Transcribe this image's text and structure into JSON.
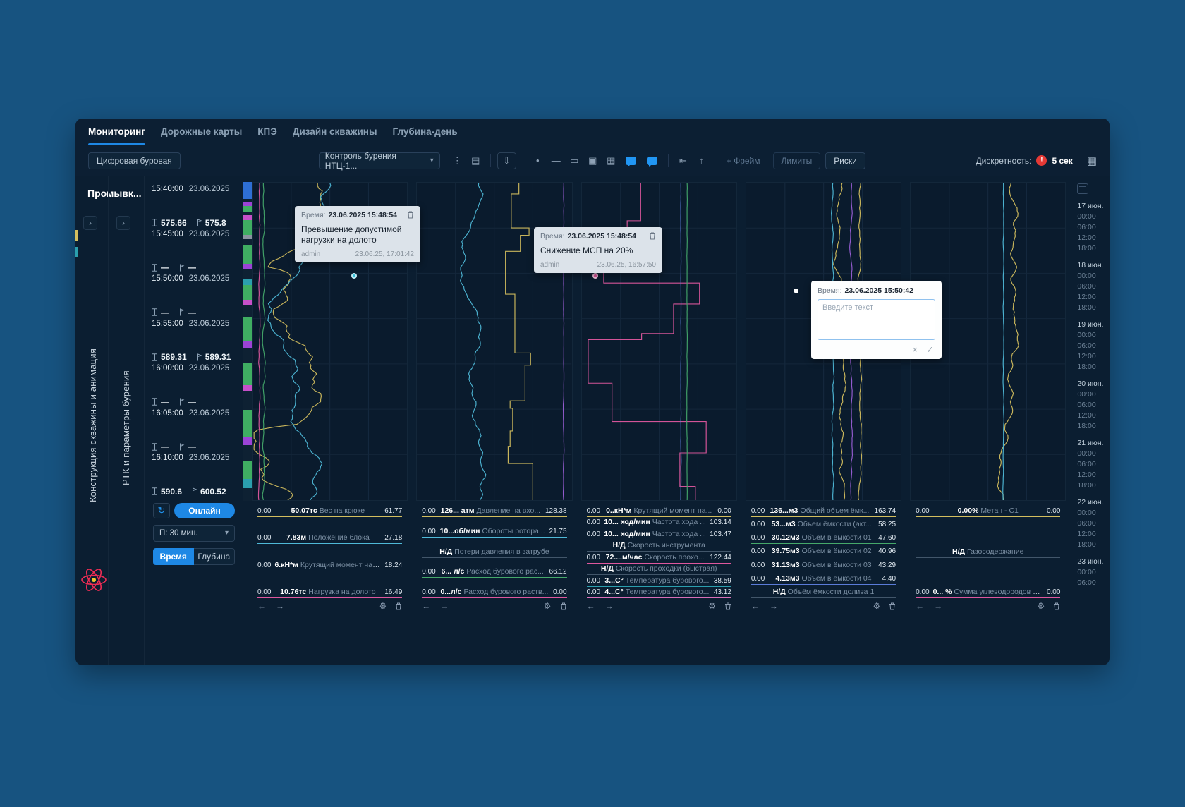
{
  "colors": {
    "accent": "#1e88e5",
    "alert": "#e53935",
    "bg_outer": "#175380",
    "bg_app": "#0b1e31"
  },
  "nav": {
    "tabs": [
      {
        "label": "Мониторинг",
        "active": true
      },
      {
        "label": "Дорожные карты",
        "active": false
      },
      {
        "label": "КПЭ",
        "active": false
      },
      {
        "label": "Дизайн скважины",
        "active": false
      },
      {
        "label": "Глубина-день",
        "active": false
      }
    ]
  },
  "toolbar": {
    "rig_button": "Цифровая буровая",
    "view_select": "Контроль бурения НТЦ-1...",
    "icon_groups": [
      {
        "icons": [
          {
            "name": "kebab-menu-icon",
            "glyph": "⋮"
          },
          {
            "name": "save-icon",
            "glyph": "▤"
          }
        ]
      },
      {
        "icons": [
          {
            "name": "download-icon",
            "glyph": "⇩",
            "boxed": true
          }
        ]
      },
      {
        "icons": [
          {
            "name": "point-tool-icon",
            "glyph": "•"
          },
          {
            "name": "line-tool-icon",
            "glyph": "―"
          },
          {
            "name": "rect-tool-icon",
            "glyph": "▭"
          },
          {
            "name": "frame-tool-icon",
            "glyph": "▣"
          },
          {
            "name": "table-tool-icon",
            "glyph": "▦"
          },
          {
            "name": "comment-tool-icon",
            "glyph": "chat"
          },
          {
            "name": "comment-add-icon",
            "glyph": "chat"
          }
        ]
      },
      {
        "icons": [
          {
            "name": "align-left-icon",
            "glyph": "⇤"
          },
          {
            "name": "arrow-up-icon",
            "glyph": "↑"
          }
        ]
      }
    ],
    "frame_button": "+ Фрейм",
    "limits_button": "Лимиты",
    "risks_button": "Риски",
    "discreteness_label": "Дискретность:",
    "discreteness_alert": "!",
    "discreteness_value": "5 сек"
  },
  "left_panel": {
    "header": "Промывк...",
    "rail_construction": "Конструкция скважины и анимация",
    "rail_rtk": "РТК и параметры бурения"
  },
  "time_panel": {
    "rows": [
      {
        "time": "15:40:00",
        "date": "23.06.2025",
        "bit": "575.66",
        "hole": "575.8"
      },
      {
        "time": "15:45:00",
        "date": "23.06.2025",
        "bit": "—",
        "hole": "—"
      },
      {
        "time": "15:50:00",
        "date": "23.06.2025",
        "bit": "—",
        "hole": "—"
      },
      {
        "time": "15:55:00",
        "date": "23.06.2025",
        "bit": "589.31",
        "hole": "589.31"
      },
      {
        "time": "16:00:00",
        "date": "23.06.2025",
        "bit": "—",
        "hole": "—"
      },
      {
        "time": "16:05:00",
        "date": "23.06.2025",
        "bit": "—",
        "hole": "—"
      },
      {
        "time": "16:10:00",
        "date": "23.06.2025",
        "bit": "590.6",
        "hole": "600.52"
      }
    ],
    "online_button": "Онлайн",
    "period_select": "П: 30 мин.",
    "mode_time": "Время",
    "mode_depth": "Глубина"
  },
  "depth_strip": [
    [
      "#2e6fd4",
      5.5
    ],
    [
      "#0e2133",
      1
    ],
    [
      "#9c43d6",
      1.2
    ],
    [
      "#3fae62",
      2
    ],
    [
      "#0e2133",
      1
    ],
    [
      "#c750c9",
      1.5
    ],
    [
      "#3fae62",
      5
    ],
    [
      "#8a93a0",
      1.2
    ],
    [
      "#0e2133",
      2
    ],
    [
      "#3fae62",
      6
    ],
    [
      "#9c43d6",
      1.8
    ],
    [
      "#0e2133",
      3
    ],
    [
      "#2b9fae",
      2
    ],
    [
      "#3fae62",
      5
    ],
    [
      "#c750c9",
      1.4
    ],
    [
      "#0e2133",
      4
    ],
    [
      "#3fae62",
      8
    ],
    [
      "#9c43d6",
      2
    ],
    [
      "#0e2133",
      5
    ],
    [
      "#3fae62",
      7
    ],
    [
      "#c750c9",
      2
    ],
    [
      "#0e2133",
      6
    ],
    [
      "#3fae62",
      9
    ],
    [
      "#9c43d6",
      2.5
    ],
    [
      "#0e2133",
      5
    ],
    [
      "#3fae62",
      6
    ],
    [
      "#2b9fae",
      3
    ],
    [
      "#0e2133",
      4
    ]
  ],
  "tracks": [
    {
      "series": [
        {
          "color": "#d3be5e",
          "mode": "walk",
          "cx": 0.42,
          "amp": 0.16,
          "pull": 0.03,
          "spiky": true,
          "seed": 11
        },
        {
          "color": "#4fb9d8",
          "mode": "walk",
          "cx": 0.5,
          "amp": 0.12,
          "pull": 0.04,
          "seed": 22
        },
        {
          "color": "#45a86a",
          "mode": "walk",
          "cx": 0.07,
          "amp": 0.02,
          "pull": 0.25,
          "seed": 33
        },
        {
          "color": "#de579e",
          "mode": "walk",
          "cx": 0.045,
          "amp": 0.015,
          "pull": 0.3,
          "seed": 44
        }
      ],
      "legends": [
        {
          "min": "0.00",
          "value": "50.07тс",
          "label": "Вес на крюке",
          "max": "61.77",
          "color": "#d3be5e"
        },
        {
          "min": "0.00",
          "value": "7.83м",
          "label": "Положение блока",
          "max": "27.18",
          "color": "#4fb9d8"
        },
        {
          "min": "0.00",
          "value": "6.кН*м",
          "label": "Крутящий момент на р...",
          "max": "18.24",
          "color": "#45a86a"
        },
        {
          "min": "0.00",
          "value": "10.76тс",
          "label": "Нагрузка на долото",
          "max": "16.49",
          "color": "#de579e"
        }
      ]
    },
    {
      "series": [
        {
          "color": "#4fb9d8",
          "mode": "walk",
          "cx": 0.4,
          "amp": 0.07,
          "pull": 0.06,
          "seed": 55
        },
        {
          "color": "#d3be5e",
          "mode": "step",
          "cx": 0.66,
          "amp": 0.18,
          "seed": 66
        },
        {
          "color": "#9a5fd6",
          "mode": "walk",
          "cx": 0.95,
          "amp": 0.01,
          "pull": 0.4,
          "seed": 77
        }
      ],
      "legends": [
        {
          "min": "0.00",
          "value": "126... атм",
          "label": "Давление на вхо...",
          "max": "128.38",
          "color": "#d3be5e"
        },
        {
          "min": "0.00",
          "value": "10...об/мин",
          "label": "Обороты ротора...",
          "max": "21.75",
          "color": "#4fb9d8"
        },
        {
          "nd": true,
          "value": "Н/Д",
          "label": "Потери давления в затрубе",
          "color": "#42566a"
        },
        {
          "min": "0.00",
          "value": "6... л/с",
          "label": "Расход бурового рас...",
          "max": "66.12",
          "color": "#45a86a"
        },
        {
          "min": "0.00",
          "value": "0...л/с",
          "label": "Расход бурового раств...",
          "max": "0.00",
          "color": "#de579e"
        }
      ]
    },
    {
      "series": [
        {
          "color": "#de579e",
          "mode": "step",
          "cx": 0.38,
          "amp": 0.85,
          "seed": 88
        },
        {
          "color": "#5a7bd8",
          "mode": "walk",
          "cx": 0.64,
          "amp": 0.008,
          "pull": 0.5,
          "seed": 99
        },
        {
          "color": "#45a86a",
          "mode": "walk",
          "cx": 0.68,
          "amp": 0.008,
          "pull": 0.5,
          "seed": 111
        }
      ],
      "legends": [
        {
          "min": "0.00",
          "value": "0..кН*м",
          "label": "Крутящий момент на...",
          "max": "0.00",
          "color": "#d3be5e"
        },
        {
          "min": "0.00",
          "value": "10... ход/мин",
          "label": "Частота хода ...",
          "max": "103.14",
          "color": "#4fb9d8"
        },
        {
          "min": "0.00",
          "value": "10... ход/мин",
          "label": "Частота хода ...",
          "max": "103.47",
          "color": "#5a7bd8"
        },
        {
          "nd": true,
          "value": "Н/Д",
          "label": "Скорость инструмента",
          "color": "#42566a"
        },
        {
          "min": "0.00",
          "value": "72....м/час",
          "label": "Скорость прохо...",
          "max": "122.44",
          "color": "#de579e"
        },
        {
          "nd": true,
          "value": "Н/Д",
          "label": "Скорость проходки (быстрая)",
          "color": "#42566a"
        },
        {
          "min": "0.00",
          "value": "3...С°",
          "label": "Температура бурового...",
          "max": "38.59",
          "color": "#2b9fae"
        },
        {
          "min": "0.00",
          "value": "4...С°",
          "label": "Температура бурового...",
          "max": "43.12",
          "color": "#d86fb8"
        }
      ]
    },
    {
      "series": [
        {
          "color": "#4fb9d8",
          "mode": "walk",
          "cx": 0.56,
          "amp": 0.02,
          "pull": 0.3,
          "seed": 121
        },
        {
          "color": "#d3be5e",
          "mode": "walk",
          "cx": 0.62,
          "amp": 0.05,
          "pull": 0.12,
          "seed": 131
        },
        {
          "color": "#9a5fd6",
          "mode": "walk",
          "cx": 0.68,
          "amp": 0.02,
          "pull": 0.3,
          "seed": 141
        },
        {
          "color": "#d3be5e",
          "mode": "walk",
          "cx": 0.74,
          "amp": 0.03,
          "pull": 0.25,
          "seed": 151
        }
      ],
      "legends": [
        {
          "min": "0.00",
          "value": "136...м3",
          "label": "Общий объем ёмк...",
          "max": "163.74",
          "color": "#d3be5e"
        },
        {
          "min": "0.00",
          "value": "53...м3",
          "label": "Объем ёмкости (акт...",
          "max": "58.25",
          "color": "#4fb9d8"
        },
        {
          "min": "0.00",
          "value": "30.12м3",
          "label": "Объем в ёмкости 01",
          "max": "47.60",
          "color": "#45a86a"
        },
        {
          "min": "0.00",
          "value": "39.75м3",
          "label": "Объем в ёмкости 02",
          "max": "40.96",
          "color": "#9a5fd6"
        },
        {
          "min": "0.00",
          "value": "31.13м3",
          "label": "Объем в ёмкости 03",
          "max": "43.29",
          "color": "#de579e"
        },
        {
          "min": "0.00",
          "value": "4.13м3",
          "label": "Объем в ёмкости 04",
          "max": "4.40",
          "color": "#5a7bd8"
        },
        {
          "nd": true,
          "value": "Н/Д",
          "label": "Объём ёмкости долива 1",
          "color": "#42566a"
        }
      ]
    },
    {
      "series": [
        {
          "color": "#d3be5e",
          "mode": "walk",
          "cx": 0.65,
          "amp": 0.06,
          "pull": 0.1,
          "seed": 161
        },
        {
          "color": "#4fb9d8",
          "mode": "walk",
          "cx": 0.6,
          "amp": 0.01,
          "pull": 0.4,
          "seed": 171
        }
      ],
      "legends": [
        {
          "min": "0.00",
          "value": "0.00%",
          "label": "Метан - С1",
          "max": "0.00",
          "color": "#d3be5e"
        },
        {
          "nd": true,
          "value": "Н/Д",
          "label": "Газосодержание",
          "color": "#42566a"
        },
        {
          "min": "0.00",
          "value": "0... %",
          "label": "Сумма углеводородов С...",
          "max": "0.00",
          "color": "#de579e"
        }
      ]
    }
  ],
  "time_axis": {
    "groups": [
      {
        "day": "17 июн.",
        "times": [
          "00:00",
          "06:00",
          "12:00",
          "18:00"
        ]
      },
      {
        "day": "18 июн.",
        "times": [
          "00:00",
          "06:00",
          "12:00",
          "18:00"
        ]
      },
      {
        "day": "19 июн.",
        "times": [
          "00:00",
          "06:00",
          "12:00",
          "18:00"
        ]
      },
      {
        "day": "20 июн.",
        "times": [
          "00:00",
          "06:00",
          "12:00",
          "18:00"
        ]
      },
      {
        "day": "21 июн.",
        "times": [
          "00:00",
          "06:00",
          "12:00",
          "18:00"
        ]
      },
      {
        "day": "22 июн.",
        "times": [
          "00:00",
          "06:00",
          "12:00",
          "18:00"
        ]
      },
      {
        "day": "23 июн.",
        "times": [
          "00:00",
          "06:00"
        ]
      }
    ]
  },
  "annotations": [
    {
      "time_label": "Время:",
      "time": "23.06.2025 15:48:54",
      "text": "Превышение допустимой нагрузки на долото",
      "author": "admin",
      "created": "23.06.25, 17:01:42"
    },
    {
      "time_label": "Время:",
      "time": "23.06.2025 15:48:54",
      "text": "Снижение МСП на 20%",
      "author": "admin",
      "created": "23.06.25, 16:57:50"
    }
  ],
  "new_annotation": {
    "time_label": "Время:",
    "time": "23.06.2025 15:50:42",
    "placeholder": "Введите текст",
    "cancel_icon": "×",
    "confirm_icon": "✓"
  }
}
